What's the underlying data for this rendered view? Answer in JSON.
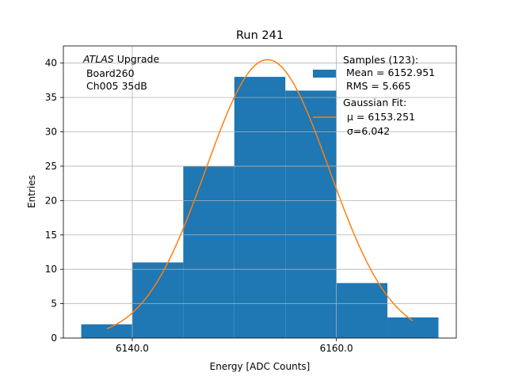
{
  "chart_data": {
    "type": "bar",
    "title": "Run 241",
    "xlabel": "Energy [ADC Counts]",
    "ylabel": "Entries",
    "xlim": [
      6133.25,
      6171.75
    ],
    "ylim": [
      0,
      42.5
    ],
    "grid": true,
    "x_ticks": [
      6140,
      6160
    ],
    "x_tick_labels": [
      "6140.0",
      "6160.0"
    ],
    "y_ticks": [
      0,
      5,
      10,
      15,
      20,
      25,
      30,
      35,
      40
    ],
    "y_tick_labels": [
      "0",
      "5",
      "10",
      "15",
      "20",
      "25",
      "30",
      "35",
      "40"
    ],
    "bin_edges": [
      6135,
      6140,
      6145,
      6150,
      6155,
      6160,
      6165,
      6170
    ],
    "values": [
      2,
      11,
      25,
      38,
      36,
      8,
      3
    ],
    "fit": {
      "type": "gaussian",
      "amplitude": 40.5,
      "mu": 6153.251,
      "sigma": 6.042,
      "x_range": [
        6137.5,
        6167.5
      ]
    },
    "annotation": {
      "line1_italic": "ATLAS",
      "line1_rest": " Upgrade",
      "line2": " Board260",
      "line3": " Ch005 35dB"
    },
    "legend": {
      "placement": "top-right",
      "hist_lines": [
        "Samples (123):",
        " Mean = 6152.951",
        " RMS = 5.665"
      ],
      "fit_lines": [
        "Gaussian Fit:",
        "μ = 6153.251",
        "σ=6.042"
      ]
    },
    "colors": {
      "hist": "#1f77b4",
      "fit": "#ff7f0e",
      "grid": "#b0b0b0"
    }
  }
}
